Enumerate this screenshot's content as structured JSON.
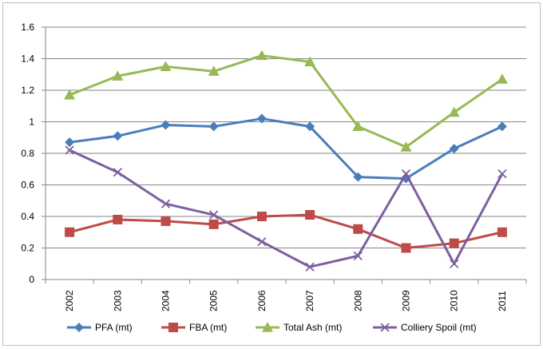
{
  "chart_data": {
    "type": "line",
    "title": "",
    "xlabel": "",
    "ylabel": "",
    "categories": [
      "2002",
      "2003",
      "2004",
      "2005",
      "2006",
      "2007",
      "2008",
      "2009",
      "2010",
      "2011"
    ],
    "ylim": [
      0,
      1.6
    ],
    "yticks": [
      "0",
      "0.2",
      "0.4",
      "0.6",
      "0.8",
      "1",
      "1.2",
      "1.4",
      "1.6"
    ],
    "grid": true,
    "legend_position": "bottom",
    "series": [
      {
        "name": "PFA (mt)",
        "color": "#4a7ebb",
        "marker": "diamond",
        "values": [
          0.87,
          0.91,
          0.98,
          0.97,
          1.02,
          0.97,
          0.65,
          0.64,
          0.83,
          0.97
        ]
      },
      {
        "name": "FBA (mt)",
        "color": "#be4b48",
        "marker": "square",
        "values": [
          0.3,
          0.38,
          0.37,
          0.35,
          0.4,
          0.41,
          0.32,
          0.2,
          0.23,
          0.3
        ]
      },
      {
        "name": "Total Ash (mt)",
        "color": "#98b954",
        "marker": "triangle",
        "values": [
          1.17,
          1.29,
          1.35,
          1.32,
          1.42,
          1.38,
          0.97,
          0.84,
          1.06,
          1.27
        ]
      },
      {
        "name": "Colliery Spoil (mt)",
        "color": "#7d60a0",
        "marker": "x",
        "values": [
          0.82,
          0.68,
          0.48,
          0.41,
          0.24,
          0.08,
          0.15,
          0.67,
          0.1,
          0.67
        ]
      }
    ]
  }
}
